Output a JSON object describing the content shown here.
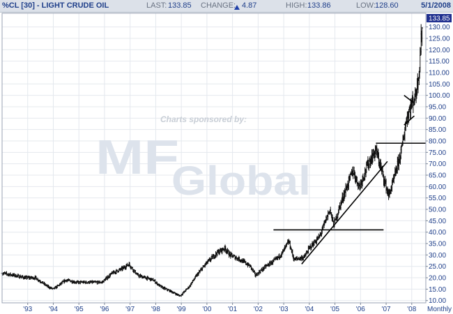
{
  "header": {
    "title": "%CL [30] - LIGHT CRUDE OIL",
    "last_label": "LAST:",
    "last_value": "133.85",
    "change_label": "CHANGE:",
    "change_value": "4.87",
    "high_label": "HIGH:",
    "high_value": "133.86",
    "low_label": "LOW:",
    "low_value": "128.60",
    "date": "5/1/2008"
  },
  "watermark": {
    "sponsor_text": "Charts sponsored by:",
    "logo_text": "MF Global"
  },
  "chart_data": {
    "type": "ohlc",
    "title": "%CL [30] - LIGHT CRUDE OIL",
    "frequency_label": "Monthly",
    "last_price_label": "133.85",
    "xlim": [
      1992.0,
      2008.55
    ],
    "ylim": [
      9,
      136
    ],
    "y_ticks": [
      10,
      15,
      20,
      25,
      30,
      35,
      40,
      45,
      50,
      55,
      60,
      65,
      70,
      75,
      80,
      85,
      90,
      95,
      100,
      105,
      110,
      115,
      120,
      125,
      130
    ],
    "y_tick_labels": [
      "10.00",
      "15.00",
      "20.00",
      "25.00",
      "30.00",
      "35.00",
      "40.00",
      "45.00",
      "50.00",
      "55.00",
      "60.00",
      "65.00",
      "70.00",
      "75.00",
      "80.00",
      "85.00",
      "90.00",
      "95.00",
      "100.00",
      "105.00",
      "110.00",
      "115.00",
      "120.00",
      "125.00",
      "130.00"
    ],
    "x_ticks": [
      1993,
      1994,
      1995,
      1996,
      1997,
      1998,
      1999,
      2000,
      2001,
      2002,
      2003,
      2004,
      2005,
      2006,
      2007,
      2008
    ],
    "x_tick_labels": [
      "'93",
      "'94",
      "'95",
      "'96",
      "'97",
      "'98",
      "'99",
      "'00",
      "'01",
      "'02",
      "'03",
      "'04",
      "'05",
      "'06",
      "'07",
      "'08"
    ],
    "grid": true,
    "anchors": [
      [
        1992.0,
        22
      ],
      [
        1992.5,
        21
      ],
      [
        1992.9,
        20
      ],
      [
        1993.3,
        20
      ],
      [
        1993.8,
        16
      ],
      [
        1994.0,
        15
      ],
      [
        1994.5,
        19
      ],
      [
        1994.9,
        18
      ],
      [
        1995.5,
        18
      ],
      [
        1995.9,
        18
      ],
      [
        1996.3,
        22
      ],
      [
        1996.7,
        24
      ],
      [
        1996.95,
        26
      ],
      [
        1997.3,
        21
      ],
      [
        1997.6,
        20
      ],
      [
        1997.9,
        19
      ],
      [
        1998.2,
        16
      ],
      [
        1998.6,
        14
      ],
      [
        1998.95,
        12
      ],
      [
        1999.3,
        16
      ],
      [
        1999.6,
        21
      ],
      [
        1999.95,
        26
      ],
      [
        2000.4,
        31
      ],
      [
        2000.7,
        33
      ],
      [
        2000.9,
        30
      ],
      [
        2001.3,
        28
      ],
      [
        2001.7,
        25
      ],
      [
        2001.9,
        21
      ],
      [
        2002.3,
        25
      ],
      [
        2002.7,
        28
      ],
      [
        2002.95,
        31
      ],
      [
        2003.2,
        36
      ],
      [
        2003.4,
        28
      ],
      [
        2003.8,
        29
      ],
      [
        2004.0,
        33
      ],
      [
        2004.4,
        38
      ],
      [
        2004.8,
        50
      ],
      [
        2004.95,
        43
      ],
      [
        2005.3,
        55
      ],
      [
        2005.7,
        67
      ],
      [
        2005.95,
        60
      ],
      [
        2006.3,
        70
      ],
      [
        2006.6,
        76
      ],
      [
        2006.95,
        62
      ],
      [
        2007.1,
        56
      ],
      [
        2007.3,
        63
      ],
      [
        2007.6,
        76
      ],
      [
        2007.8,
        90
      ],
      [
        2007.95,
        95
      ],
      [
        2008.15,
        100
      ],
      [
        2008.3,
        112
      ],
      [
        2008.42,
        133.85
      ]
    ],
    "horizontal_lines": [
      {
        "y": 41,
        "x_start": 2002.6,
        "x_end": 2006.9
      },
      {
        "y": 79,
        "x_start": 2006.6,
        "x_end": 2008.55
      }
    ],
    "trend_lines": [
      {
        "x1": 2003.7,
        "y1": 26,
        "x2": 2007.05,
        "y2": 71
      },
      {
        "x1": 2007.7,
        "y1": 87,
        "x2": 2008.1,
        "y2": 91
      },
      {
        "x1": 2007.7,
        "y1": 100,
        "x2": 2008.05,
        "y2": 97
      }
    ]
  }
}
